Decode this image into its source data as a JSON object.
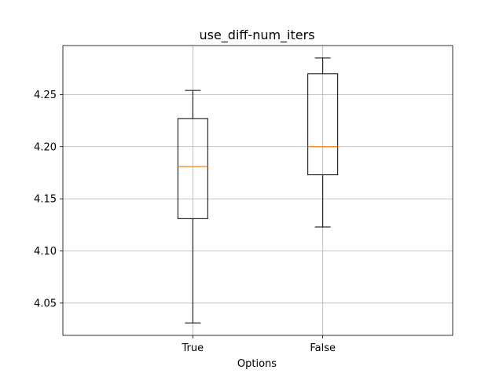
{
  "chart_data": {
    "type": "boxplot",
    "title": "use_diff-num_iters",
    "xlabel": "Options",
    "ylabel": "",
    "categories": [
      "True",
      "False"
    ],
    "boxes": [
      {
        "category": "True",
        "whisker_low": 4.031,
        "q1": 4.131,
        "median": 4.181,
        "q3": 4.227,
        "whisker_high": 4.254
      },
      {
        "category": "False",
        "whisker_low": 4.123,
        "q1": 4.173,
        "median": 4.2,
        "q3": 4.27,
        "whisker_high": 4.285
      }
    ],
    "ylim": [
      4.019,
      4.297
    ],
    "yticks": [
      4.05,
      4.1,
      4.15,
      4.2,
      4.25
    ],
    "ytick_labels": [
      "4.05",
      "4.10",
      "4.15",
      "4.20",
      "4.25"
    ],
    "grid": true,
    "colors": {
      "box": "#000000",
      "median": "#ff7f0e",
      "grid": "#b0b0b0"
    }
  }
}
